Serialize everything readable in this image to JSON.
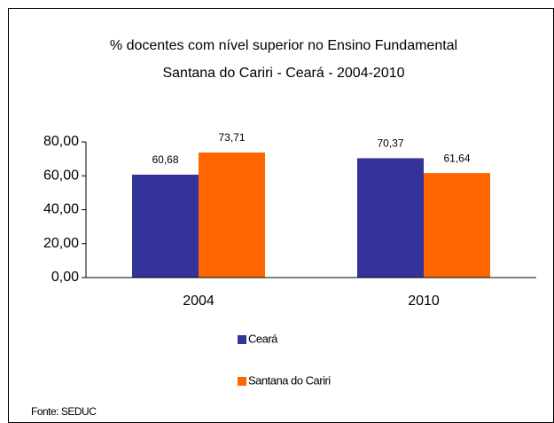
{
  "chart_data": {
    "type": "bar",
    "title": "% docentes com nível  superior no Ensino Fundamental",
    "subtitle": "Santana do Cariri  -  Ceará - 2004-2010",
    "categories": [
      "2004",
      "2010"
    ],
    "series": [
      {
        "name": "Ceará",
        "color": "#333399",
        "values": [
          60.68,
          70.37
        ],
        "value_labels": [
          "60,68",
          "70,37"
        ]
      },
      {
        "name": "Santana do Cariri",
        "color": "#ff6600",
        "values": [
          73.71,
          61.64
        ],
        "value_labels": [
          "73,71",
          "61,64"
        ]
      }
    ],
    "ylim": [
      0,
      80
    ],
    "yticks": [
      {
        "value": 0,
        "label": "0,00"
      },
      {
        "value": 20,
        "label": "20,00"
      },
      {
        "value": 40,
        "label": "40,00"
      },
      {
        "value": 60,
        "label": "60,00"
      },
      {
        "value": 80,
        "label": "80,00"
      }
    ],
    "legend": "bottom",
    "source": "Fonte: SEDUC"
  }
}
